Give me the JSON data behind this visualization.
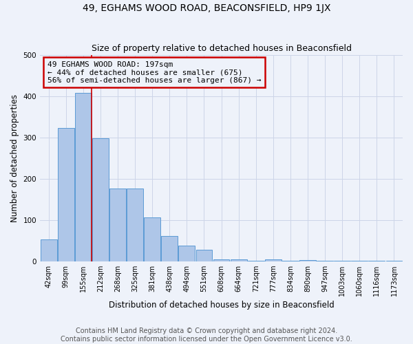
{
  "title": "49, EGHAMS WOOD ROAD, BEACONSFIELD, HP9 1JX",
  "subtitle": "Size of property relative to detached houses in Beaconsfield",
  "xlabel": "Distribution of detached houses by size in Beaconsfield",
  "ylabel": "Number of detached properties",
  "footnote": "Contains HM Land Registry data © Crown copyright and database right 2024.\nContains public sector information licensed under the Open Government Licence v3.0.",
  "categories": [
    "42sqm",
    "99sqm",
    "155sqm",
    "212sqm",
    "268sqm",
    "325sqm",
    "381sqm",
    "438sqm",
    "494sqm",
    "551sqm",
    "608sqm",
    "664sqm",
    "721sqm",
    "777sqm",
    "834sqm",
    "890sqm",
    "947sqm",
    "1003sqm",
    "1060sqm",
    "1116sqm",
    "1173sqm"
  ],
  "values": [
    53,
    322,
    407,
    298,
    176,
    176,
    107,
    62,
    38,
    28,
    4,
    4,
    2,
    4,
    2,
    3,
    1,
    1,
    1,
    2,
    1
  ],
  "bar_color": "#aec6e8",
  "bar_edge_color": "#5b9bd5",
  "annotation_box_text": "49 EGHAMS WOOD ROAD: 197sqm\n← 44% of detached houses are smaller (675)\n56% of semi-detached houses are larger (867) →",
  "annotation_box_color": "#cc0000",
  "vline_color": "#cc0000",
  "vline_x": 2.5,
  "ylim": [
    0,
    500
  ],
  "background_color": "#eef2fa",
  "grid_color": "#ccd5e8",
  "title_fontsize": 10,
  "subtitle_fontsize": 9,
  "axis_label_fontsize": 8.5,
  "tick_fontsize": 7,
  "annotation_fontsize": 8,
  "footnote_fontsize": 7
}
